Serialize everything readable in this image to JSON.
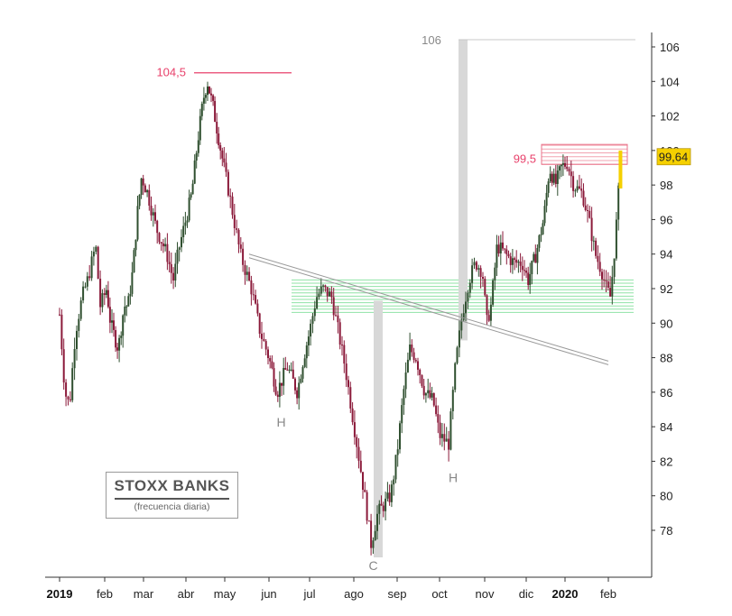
{
  "chart_data": {
    "type": "candlestick",
    "title": "STOXX BANKS",
    "subtitle": "(frecuencia diaria)",
    "ylim": [
      75,
      106.5
    ],
    "y_ticks": [
      78,
      80,
      82,
      84,
      86,
      88,
      90,
      92,
      94,
      96,
      98,
      100,
      102,
      104,
      106
    ],
    "x_labels": [
      {
        "text": "2019",
        "bold": true,
        "t": 0
      },
      {
        "text": "feb",
        "bold": false,
        "t": 1
      },
      {
        "text": "mar",
        "bold": false,
        "t": 2
      },
      {
        "text": "abr",
        "bold": false,
        "t": 3
      },
      {
        "text": "may",
        "bold": false,
        "t": 4
      },
      {
        "text": "jun",
        "bold": false,
        "t": 5
      },
      {
        "text": "jul",
        "bold": false,
        "t": 6
      },
      {
        "text": "ago",
        "bold": false,
        "t": 7
      },
      {
        "text": "sep",
        "bold": false,
        "t": 8
      },
      {
        "text": "oct",
        "bold": false,
        "t": 9
      },
      {
        "text": "nov",
        "bold": false,
        "t": 10
      },
      {
        "text": "dic",
        "bold": false,
        "t": 11
      },
      {
        "text": "2020",
        "bold": true,
        "t": 12
      },
      {
        "text": "feb",
        "bold": false,
        "t": 13
      }
    ],
    "price_path": [
      [
        0.0,
        90.5
      ],
      [
        0.12,
        86.0
      ],
      [
        0.22,
        85.2
      ],
      [
        0.35,
        89.5
      ],
      [
        0.5,
        91.5
      ],
      [
        0.62,
        92.5
      ],
      [
        0.8,
        94.5
      ],
      [
        0.9,
        91.0
      ],
      [
        1.05,
        92.0
      ],
      [
        1.15,
        90.0
      ],
      [
        1.35,
        88.5
      ],
      [
        1.5,
        91.0
      ],
      [
        1.6,
        91.0
      ],
      [
        1.72,
        93.0
      ],
      [
        1.85,
        96.5
      ],
      [
        1.95,
        98.5
      ],
      [
        2.1,
        97.5
      ],
      [
        2.3,
        95.5
      ],
      [
        2.55,
        94.0
      ],
      [
        2.7,
        92.5
      ],
      [
        2.85,
        94.5
      ],
      [
        3.0,
        96.0
      ],
      [
        3.15,
        97.5
      ],
      [
        3.3,
        100.5
      ],
      [
        3.45,
        103.0
      ],
      [
        3.55,
        104.0
      ],
      [
        3.7,
        102.5
      ],
      [
        3.9,
        100.0
      ],
      [
        4.1,
        97.5
      ],
      [
        4.35,
        94.0
      ],
      [
        4.6,
        92.0
      ],
      [
        4.8,
        89.5
      ],
      [
        5.0,
        88.0
      ],
      [
        5.2,
        86.0
      ],
      [
        5.45,
        87.5
      ],
      [
        5.7,
        86.0
      ],
      [
        5.85,
        88.0
      ],
      [
        6.0,
        89.5
      ],
      [
        6.15,
        91.5
      ],
      [
        6.3,
        92.0
      ],
      [
        6.5,
        91.5
      ],
      [
        6.65,
        89.5
      ],
      [
        6.8,
        87.5
      ],
      [
        6.95,
        85.0
      ],
      [
        7.1,
        82.5
      ],
      [
        7.25,
        80.0
      ],
      [
        7.4,
        77.2
      ],
      [
        7.55,
        79.0
      ],
      [
        7.7,
        79.5
      ],
      [
        7.85,
        80.0
      ],
      [
        8.0,
        82.5
      ],
      [
        8.15,
        86.0
      ],
      [
        8.3,
        88.5
      ],
      [
        8.45,
        88.0
      ],
      [
        8.65,
        86.0
      ],
      [
        8.85,
        85.5
      ],
      [
        9.0,
        83.5
      ],
      [
        9.2,
        83.0
      ],
      [
        9.35,
        87.5
      ],
      [
        9.5,
        90.5
      ],
      [
        9.65,
        92.5
      ],
      [
        9.8,
        93.5
      ],
      [
        9.95,
        93.0
      ],
      [
        10.05,
        90.0
      ],
      [
        10.15,
        91.0
      ],
      [
        10.3,
        94.5
      ],
      [
        10.5,
        94.0
      ],
      [
        10.7,
        93.5
      ],
      [
        10.9,
        93.5
      ],
      [
        11.05,
        92.5
      ],
      [
        11.25,
        94.0
      ],
      [
        11.45,
        96.0
      ],
      [
        11.6,
        99.0
      ],
      [
        11.75,
        98.0
      ],
      [
        11.9,
        99.0
      ],
      [
        12.05,
        99.3
      ],
      [
        12.2,
        98.0
      ],
      [
        12.4,
        97.5
      ],
      [
        12.55,
        96.0
      ],
      [
        12.7,
        94.0
      ],
      [
        12.85,
        93.0
      ],
      [
        12.95,
        92.0
      ],
      [
        13.05,
        91.5
      ],
      [
        13.15,
        94.5
      ],
      [
        13.22,
        97.0
      ],
      [
        13.28,
        99.64
      ]
    ],
    "last_price": "99,64",
    "annotations": {
      "high_2019": {
        "value": 104.5,
        "label": "104,5"
      },
      "resistance": {
        "value": 99.5,
        "label": "99,5"
      },
      "upper_label": {
        "value": 106,
        "label": "106"
      },
      "support_zone": {
        "from": 90.5,
        "to": 92.5
      },
      "neckline": {
        "from": [
          4.55,
          94.0
        ],
        "to": [
          13.0,
          87.8
        ]
      },
      "pattern_labels": [
        {
          "text": "H",
          "t": 5.3,
          "value": 84.0
        },
        {
          "text": "C",
          "t": 7.45,
          "value": 75.7
        },
        {
          "text": "H",
          "t": 9.3,
          "value": 80.8
        }
      ]
    },
    "colors": {
      "candle_up": "#2f4f2f",
      "candle_down": "#8b1a3a",
      "high_line": "#e8416b",
      "resistance_band": "#f2a3b0",
      "support_band": "#8fe3a6",
      "neckline": "#9a9a9a",
      "gray_bar": "#d8d8d8",
      "last_price_fill": "#f5d000"
    }
  }
}
